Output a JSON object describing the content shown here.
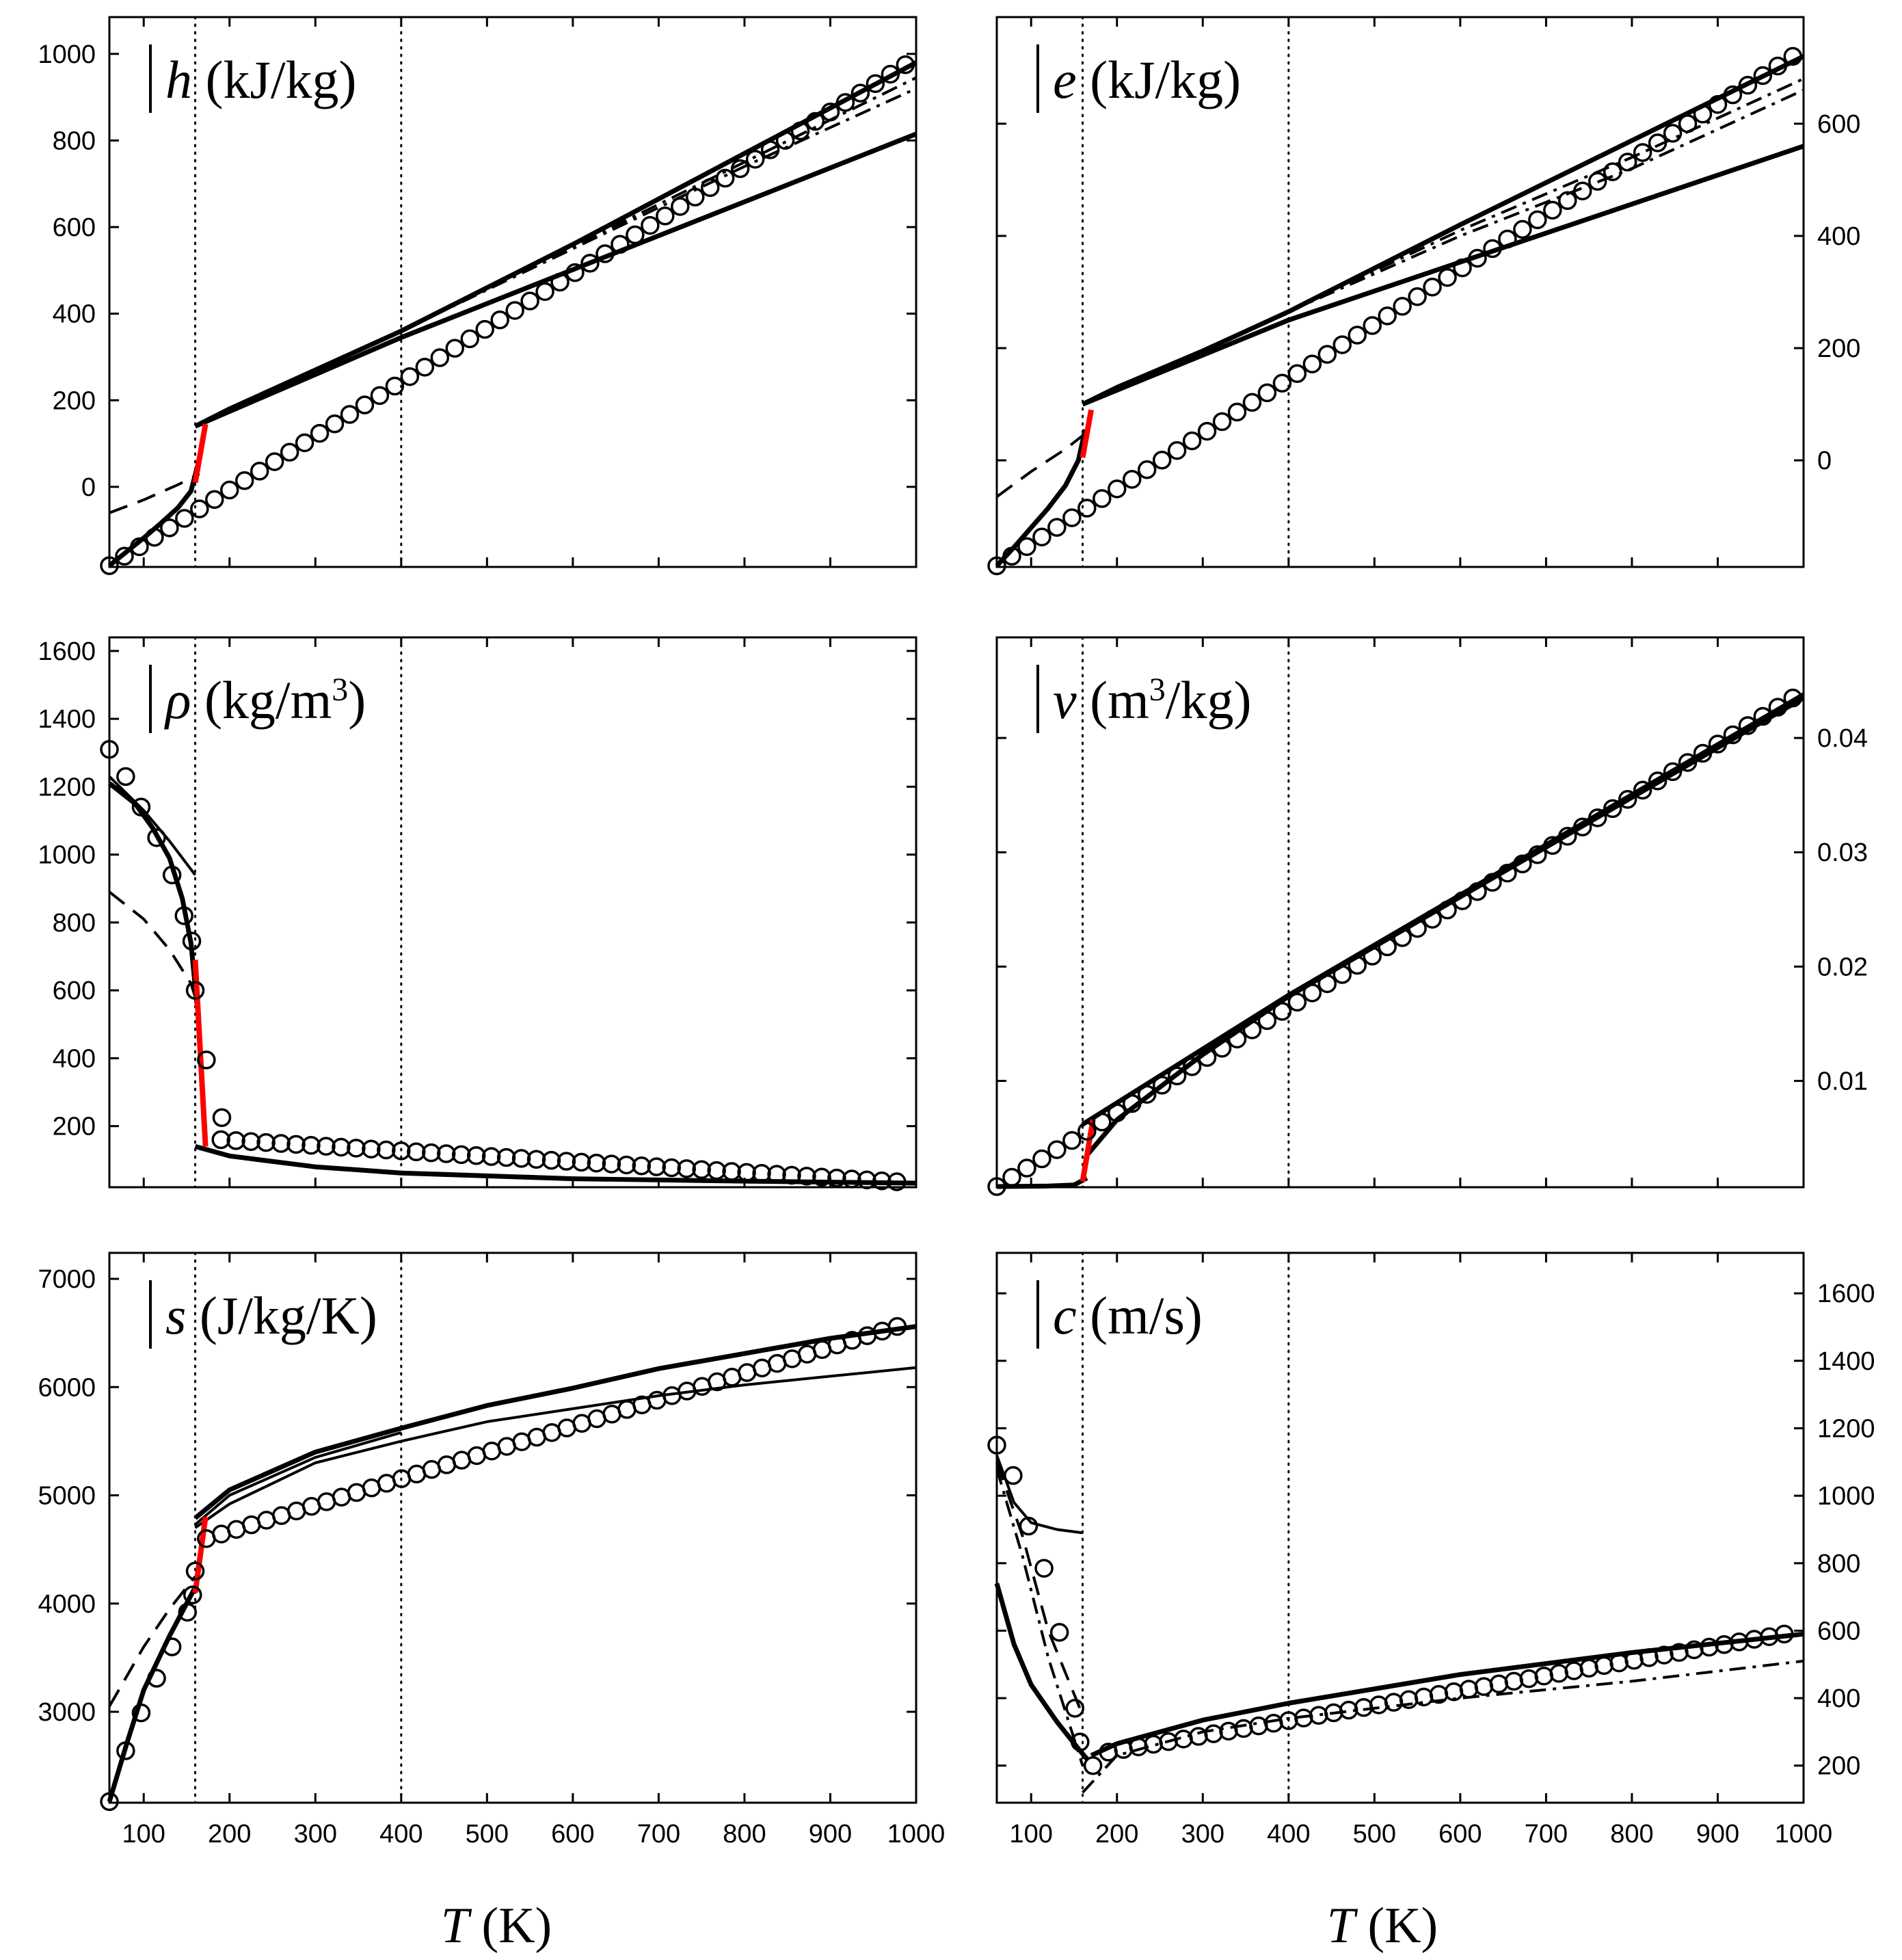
{
  "figure": {
    "x_axis_label": {
      "symbol": "T",
      "unit": "(K)"
    },
    "vertical_guides_T": [
      160,
      400
    ],
    "styles": {
      "line": "#000000",
      "transition": "#ff0000",
      "marker": "#000000",
      "guide": "#000000",
      "background": "#ffffff"
    }
  },
  "chart_data": [
    {
      "id": "h",
      "type": "line",
      "label": {
        "symbol": "h",
        "unit": " (kJ/kg)"
      },
      "xlabel": "T (K)",
      "xlim": [
        60,
        1000
      ],
      "ylim": [
        -185,
        1085
      ],
      "y_axis_side": "left",
      "xticks": [
        100,
        200,
        300,
        400,
        500,
        600,
        700,
        800,
        900,
        1000
      ],
      "yticks": [
        0,
        200,
        400,
        600,
        800,
        1000
      ],
      "show_xticklabels": false,
      "transition": {
        "x": [
          160,
          172
        ],
        "y": [
          10,
          145
        ]
      },
      "markers": {
        "x0": 60,
        "step": 17.5,
        "n": 54,
        "v0": -182,
        "v_end": 975
      },
      "series": [
        {
          "name": "liquid",
          "style": "solid_thick",
          "x": [
            60,
            80,
            100,
            120,
            140,
            155,
            163
          ],
          "y": [
            -182,
            -150,
            -118,
            -84,
            -48,
            -10,
            50
          ]
        },
        {
          "name": "vapour ideal",
          "style": "solid_thick",
          "x": [
            160,
            400,
            1000
          ],
          "y": [
            140,
            345,
            815
          ]
        },
        {
          "name": "vapour real",
          "style": "solid_thick",
          "x": [
            160,
            200,
            300,
            400,
            600,
            800,
            1000
          ],
          "y": [
            140,
            180,
            270,
            360,
            560,
            770,
            980
          ]
        },
        {
          "name": "dashed",
          "style": "dashed",
          "x": [
            60,
            100,
            140,
            165
          ],
          "y": [
            -60,
            -30,
            5,
            30
          ]
        },
        {
          "name": "dash-dot",
          "style": "dashdot",
          "x": [
            400,
            600,
            800,
            1000
          ],
          "y": [
            360,
            550,
            740,
            920
          ]
        },
        {
          "name": "dash-dot-2",
          "style": "dashdot",
          "x": [
            400,
            600,
            800,
            1000
          ],
          "y": [
            360,
            555,
            750,
            945
          ]
        }
      ]
    },
    {
      "id": "e",
      "type": "line",
      "label": {
        "symbol": "e",
        "unit": " (kJ/kg)"
      },
      "xlabel": "T (K)",
      "xlim": [
        60,
        1000
      ],
      "ylim": [
        -190,
        790
      ],
      "y_axis_side": "right",
      "xticks": [
        100,
        200,
        300,
        400,
        500,
        600,
        700,
        800,
        900,
        1000
      ],
      "yticks": [
        0,
        200,
        400,
        600
      ],
      "show_xticklabels": false,
      "transition": {
        "x": [
          160,
          170
        ],
        "y": [
          5,
          90
        ]
      },
      "markers": {
        "x0": 60,
        "step": 17.5,
        "n": 54,
        "v0": -188,
        "v_end": 720
      },
      "series": [
        {
          "name": "liquid",
          "style": "solid_thick",
          "x": [
            60,
            80,
            100,
            120,
            140,
            155,
            163
          ],
          "y": [
            -188,
            -155,
            -120,
            -85,
            -45,
            0,
            55
          ]
        },
        {
          "name": "vapour ideal",
          "style": "solid_thick",
          "x": [
            160,
            400,
            1000
          ],
          "y": [
            100,
            250,
            560
          ]
        },
        {
          "name": "vapour real",
          "style": "solid_thick",
          "x": [
            160,
            200,
            300,
            400,
            600,
            800,
            1000
          ],
          "y": [
            100,
            130,
            195,
            265,
            420,
            570,
            720
          ]
        },
        {
          "name": "dashed",
          "style": "dashed",
          "x": [
            60,
            100,
            140,
            165
          ],
          "y": [
            -65,
            -20,
            20,
            50
          ]
        },
        {
          "name": "dash-dot",
          "style": "dashdot",
          "x": [
            400,
            600,
            800,
            1000
          ],
          "y": [
            265,
            400,
            520,
            660
          ]
        },
        {
          "name": "dash-dot-2",
          "style": "dashdot",
          "x": [
            400,
            600,
            800,
            1000
          ],
          "y": [
            265,
            410,
            540,
            680
          ]
        }
      ]
    },
    {
      "id": "rho",
      "type": "line",
      "label": {
        "symbol": "ρ",
        "unit": " (kg/m",
        "sup": "3",
        "close": ")"
      },
      "xlabel": "T (K)",
      "xlim": [
        60,
        1000
      ],
      "ylim": [
        20,
        1640
      ],
      "y_axis_side": "left",
      "xticks": [
        100,
        200,
        300,
        400,
        500,
        600,
        700,
        800,
        900,
        1000
      ],
      "yticks": [
        200,
        400,
        600,
        800,
        1000,
        1200,
        1400,
        1600
      ],
      "show_xticklabels": false,
      "transition": {
        "x": [
          160,
          172
        ],
        "y": [
          690,
          140
        ]
      },
      "markers": {
        "x": [
          60,
          79,
          97,
          115,
          133,
          147,
          156,
          160,
          173,
          191
        ],
        "y": [
          1310,
          1230,
          1140,
          1050,
          940,
          820,
          745,
          600,
          395,
          225
        ],
        "tail": {
          "x0": 190,
          "step": 17.5,
          "n": 46,
          "v0": 160,
          "v_end": 36
        }
      },
      "series": [
        {
          "name": "liquid",
          "style": "solid_thick",
          "x": [
            60,
            90,
            110,
            130,
            145,
            155,
            162
          ],
          "y": [
            1210,
            1150,
            1080,
            990,
            870,
            740,
            560
          ]
        },
        {
          "name": "liquid-2",
          "style": "solid",
          "x": [
            60,
            100,
            130,
            160
          ],
          "y": [
            1230,
            1130,
            1040,
            940
          ]
        },
        {
          "name": "vapour",
          "style": "solid_thick",
          "x": [
            160,
            200,
            300,
            400,
            600,
            800,
            1000
          ],
          "y": [
            140,
            112,
            80,
            62,
            45,
            38,
            32
          ]
        },
        {
          "name": "dashed",
          "style": "dashed",
          "x": [
            60,
            100,
            130,
            155,
            165
          ],
          "y": [
            890,
            810,
            720,
            620,
            540
          ]
        }
      ]
    },
    {
      "id": "v",
      "type": "line",
      "label": {
        "symbol": "v",
        "unit": " (m",
        "sup": "3",
        "close": "/kg)"
      },
      "xlabel": "T (K)",
      "xlim": [
        60,
        1000
      ],
      "ylim": [
        0.0007,
        0.0488
      ],
      "y_axis_side": "right",
      "xticks": [
        100,
        200,
        300,
        400,
        500,
        600,
        700,
        800,
        900,
        1000
      ],
      "yticks": [
        0.01,
        0.02,
        0.03,
        0.04
      ],
      "ytick_labels": [
        "0.01",
        "0.02",
        "0.03",
        "0.04"
      ],
      "show_xticklabels": false,
      "transition": {
        "x": [
          160,
          172
        ],
        "y": [
          0.0012,
          0.0066
        ]
      },
      "markers": {
        "x0": 60,
        "step": 17.5,
        "n": 54,
        "v0": 0.00076,
        "v_end": 0.0435
      },
      "series": [
        {
          "name": "liquid",
          "style": "solid_thick",
          "x": [
            60,
            120,
            150,
            165
          ],
          "y": [
            0.00076,
            0.0008,
            0.0009,
            0.0015
          ]
        },
        {
          "name": "vapour ideal",
          "style": "solid_thick",
          "x": [
            160,
            400,
            1000
          ],
          "y": [
            0.0062,
            0.0175,
            0.0438
          ]
        },
        {
          "name": "vapour real",
          "style": "solid_thick",
          "x": [
            165,
            200,
            300,
            400,
            1000
          ],
          "y": [
            0.0035,
            0.0066,
            0.0123,
            0.0174,
            0.0435
          ]
        }
      ]
    },
    {
      "id": "s",
      "type": "line",
      "label": {
        "symbol": "s",
        "unit": " (J/kg/K)"
      },
      "xlabel": "T (K)",
      "xlim": [
        60,
        1000
      ],
      "ylim": [
        2160,
        7240
      ],
      "y_axis_side": "left",
      "xticks": [
        100,
        200,
        300,
        400,
        500,
        600,
        700,
        800,
        900,
        1000
      ],
      "yticks": [
        3000,
        4000,
        5000,
        6000,
        7000
      ],
      "xtick_labels": [
        "100",
        "200",
        "300",
        "400",
        "500",
        "600",
        "700",
        "800",
        "900",
        "1000"
      ],
      "show_xticklabels": true,
      "transition": {
        "x": [
          160,
          172
        ],
        "y": [
          4100,
          4800
        ]
      },
      "markers": {
        "x": [
          60,
          79,
          97,
          115,
          133,
          151,
          157,
          160
        ],
        "y": [
          2170,
          2640,
          2990,
          3310,
          3600,
          3920,
          4080,
          4300
        ],
        "tail": {
          "x0": 173,
          "step": 17.5,
          "n": 47,
          "v0": 4600,
          "v_end": 6560
        }
      },
      "series": [
        {
          "name": "liquid",
          "style": "solid_thick",
          "x": [
            60,
            80,
            100,
            130,
            160
          ],
          "y": [
            2170,
            2700,
            3200,
            3700,
            4150
          ]
        },
        {
          "name": "vapour ideal",
          "style": "solid",
          "x": [
            160,
            200,
            300,
            400,
            500,
            600,
            700,
            800,
            900,
            1000
          ],
          "y": [
            4700,
            4920,
            5300,
            5500,
            5680,
            5800,
            5920,
            6020,
            6100,
            6180
          ]
        },
        {
          "name": "vapour real",
          "style": "solid_thick",
          "x": [
            160,
            200,
            300,
            400,
            500,
            600,
            700,
            800,
            900,
            1000
          ],
          "y": [
            4790,
            5050,
            5400,
            5620,
            5830,
            5990,
            6170,
            6310,
            6450,
            6560
          ]
        },
        {
          "name": "vapour real-2",
          "style": "solid",
          "x": [
            160,
            200,
            300,
            400
          ],
          "y": [
            4730,
            5000,
            5350,
            5580
          ]
        },
        {
          "name": "dashed",
          "style": "dashed",
          "x": [
            60,
            100,
            130,
            160
          ],
          "y": [
            3050,
            3600,
            3950,
            4250
          ]
        }
      ]
    },
    {
      "id": "c",
      "type": "line",
      "label": {
        "symbol": "c",
        "unit": " (m/s)"
      },
      "xlabel": "T (K)",
      "xlim": [
        60,
        1000
      ],
      "ylim": [
        90,
        1720
      ],
      "y_axis_side": "right",
      "xticks": [
        100,
        200,
        300,
        400,
        500,
        600,
        700,
        800,
        900,
        1000
      ],
      "yticks": [
        200,
        400,
        600,
        800,
        1000,
        1200,
        1400,
        1600
      ],
      "xtick_labels": [
        "100",
        "200",
        "300",
        "400",
        "500",
        "600",
        "700",
        "800",
        "900",
        "1000"
      ],
      "show_xticklabels": true,
      "markers": {
        "x": [
          60,
          79,
          97,
          115,
          133,
          151,
          157,
          172
        ],
        "y": [
          1150,
          1060,
          910,
          785,
          595,
          370,
          270,
          200
        ],
        "tail": {
          "x0": 190,
          "step": 17.5,
          "n": 46,
          "v0": 240,
          "v_end": 590
        }
      },
      "series": [
        {
          "name": "liquid-1",
          "style": "solid",
          "x": [
            60,
            80,
            100,
            130,
            160
          ],
          "y": [
            1120,
            980,
            920,
            900,
            890
          ]
        },
        {
          "name": "liquid-2",
          "style": "solid_thick",
          "x": [
            60,
            80,
            100,
            130,
            155,
            165
          ],
          "y": [
            740,
            560,
            440,
            330,
            250,
            220
          ]
        },
        {
          "name": "dashed",
          "style": "dashed",
          "x": [
            60,
            90,
            120,
            160
          ],
          "y": [
            1100,
            880,
            600,
            350
          ]
        },
        {
          "name": "dash-dot-1",
          "style": "dashdot",
          "x": [
            60,
            90,
            120,
            160
          ],
          "y": [
            1080,
            820,
            520,
            200
          ]
        },
        {
          "name": "dash-dot-2",
          "style": "dashdot",
          "x": [
            160,
            200,
            300,
            400,
            600,
            800,
            1000
          ],
          "y": [
            120,
            230,
            300,
            340,
            400,
            450,
            510
          ]
        },
        {
          "name": "vapour",
          "style": "solid_thick",
          "x": [
            170,
            200,
            300,
            400,
            600,
            800,
            1000
          ],
          "y": [
            230,
            265,
            335,
            385,
            470,
            535,
            590
          ]
        }
      ]
    }
  ]
}
